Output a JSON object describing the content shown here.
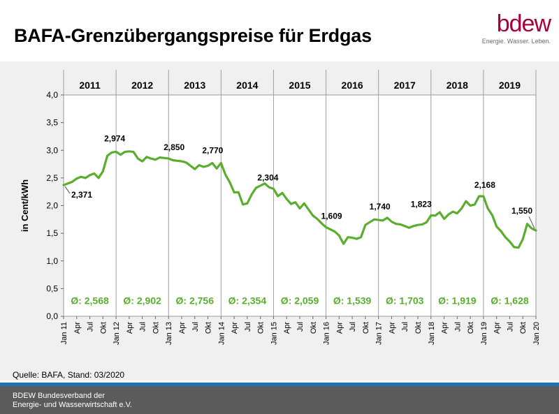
{
  "header": {
    "title": "BAFA-Grenzübergangspreise für Erdgas",
    "logo_word": "bdew",
    "logo_tagline": "Energie. Wasser. Leben.",
    "logo_color": "#a8003b"
  },
  "source": "Quelle: BAFA, Stand: 03/2020",
  "footer": {
    "line1": "BDEW Bundesverband der",
    "line2": "Energie- und Wasserwirtschaft e.V.",
    "accent_color": "#1b74b8"
  },
  "chart_data": {
    "type": "line",
    "ylabel": "in Cent/kWh",
    "xlabel": "",
    "ylim": [
      0,
      4.0
    ],
    "yticks": [
      "0,0",
      "0,5",
      "1,0",
      "1,5",
      "2,0",
      "2,5",
      "3,0",
      "3,5",
      "4,0"
    ],
    "grid": "vertical lines at each year start",
    "line_color": "#5aae2f",
    "years": [
      "2011",
      "2012",
      "2013",
      "2014",
      "2015",
      "2016",
      "2017",
      "2018",
      "2019"
    ],
    "averages": [
      "Ø: 2,568",
      "Ø: 2,902",
      "Ø: 2,756",
      "Ø: 2,354",
      "Ø: 2,059",
      "Ø: 1,539",
      "Ø: 1,703",
      "Ø: 1,919",
      "Ø: 1,628"
    ],
    "xtick_labels": [
      "Jan 11",
      "Apr",
      "Jul",
      "Okt",
      "Jan 12",
      "Apr",
      "Jul",
      "Okt",
      "Jan 13",
      "Apr",
      "Jul",
      "Okt",
      "Jan 14",
      "Apr",
      "Jul",
      "Okt",
      "Jan 15",
      "Apr",
      "Jul",
      "Okt",
      "Jan 16",
      "Apr",
      "Jul",
      "Okt",
      "Jan 17",
      "Apr",
      "Jul",
      "Okt",
      "Jan 18",
      "Apr",
      "Jul",
      "Okt",
      "Jan 19",
      "Apr",
      "Jul",
      "Okt",
      "Jan 20"
    ],
    "values": [
      2.371,
      2.4,
      2.43,
      2.49,
      2.52,
      2.5,
      2.55,
      2.58,
      2.5,
      2.62,
      2.9,
      2.96,
      2.974,
      2.92,
      2.97,
      2.98,
      2.97,
      2.85,
      2.8,
      2.88,
      2.85,
      2.83,
      2.87,
      2.86,
      2.85,
      2.82,
      2.81,
      2.8,
      2.78,
      2.72,
      2.66,
      2.73,
      2.7,
      2.72,
      2.77,
      2.67,
      2.77,
      2.56,
      2.42,
      2.24,
      2.24,
      2.02,
      2.04,
      2.2,
      2.32,
      2.36,
      2.4,
      2.33,
      2.304,
      2.17,
      2.23,
      2.12,
      2.03,
      2.06,
      1.95,
      2.04,
      1.93,
      1.82,
      1.76,
      1.68,
      1.609,
      1.57,
      1.53,
      1.46,
      1.31,
      1.43,
      1.42,
      1.4,
      1.43,
      1.65,
      1.7,
      1.75,
      1.74,
      1.73,
      1.78,
      1.71,
      1.67,
      1.66,
      1.63,
      1.6,
      1.63,
      1.65,
      1.66,
      1.7,
      1.823,
      1.82,
      1.88,
      1.76,
      1.84,
      1.89,
      1.86,
      1.95,
      2.08,
      2.0,
      2.02,
      2.17,
      2.168,
      1.95,
      1.83,
      1.62,
      1.54,
      1.43,
      1.35,
      1.25,
      1.24,
      1.39,
      1.67,
      1.59,
      1.55
    ],
    "point_labels": [
      {
        "index": 0,
        "label": "2,371"
      },
      {
        "index": 12,
        "label": "2,974"
      },
      {
        "index": 24,
        "label": "2,850"
      },
      {
        "index": 36,
        "label": "2,770"
      },
      {
        "index": 48,
        "label": "2,304"
      },
      {
        "index": 60,
        "label": "1,609"
      },
      {
        "index": 72,
        "label": "1,740"
      },
      {
        "index": 84,
        "label": "1,823"
      },
      {
        "index": 96,
        "label": "2,168"
      },
      {
        "index": 108,
        "label": "1,550"
      }
    ]
  }
}
